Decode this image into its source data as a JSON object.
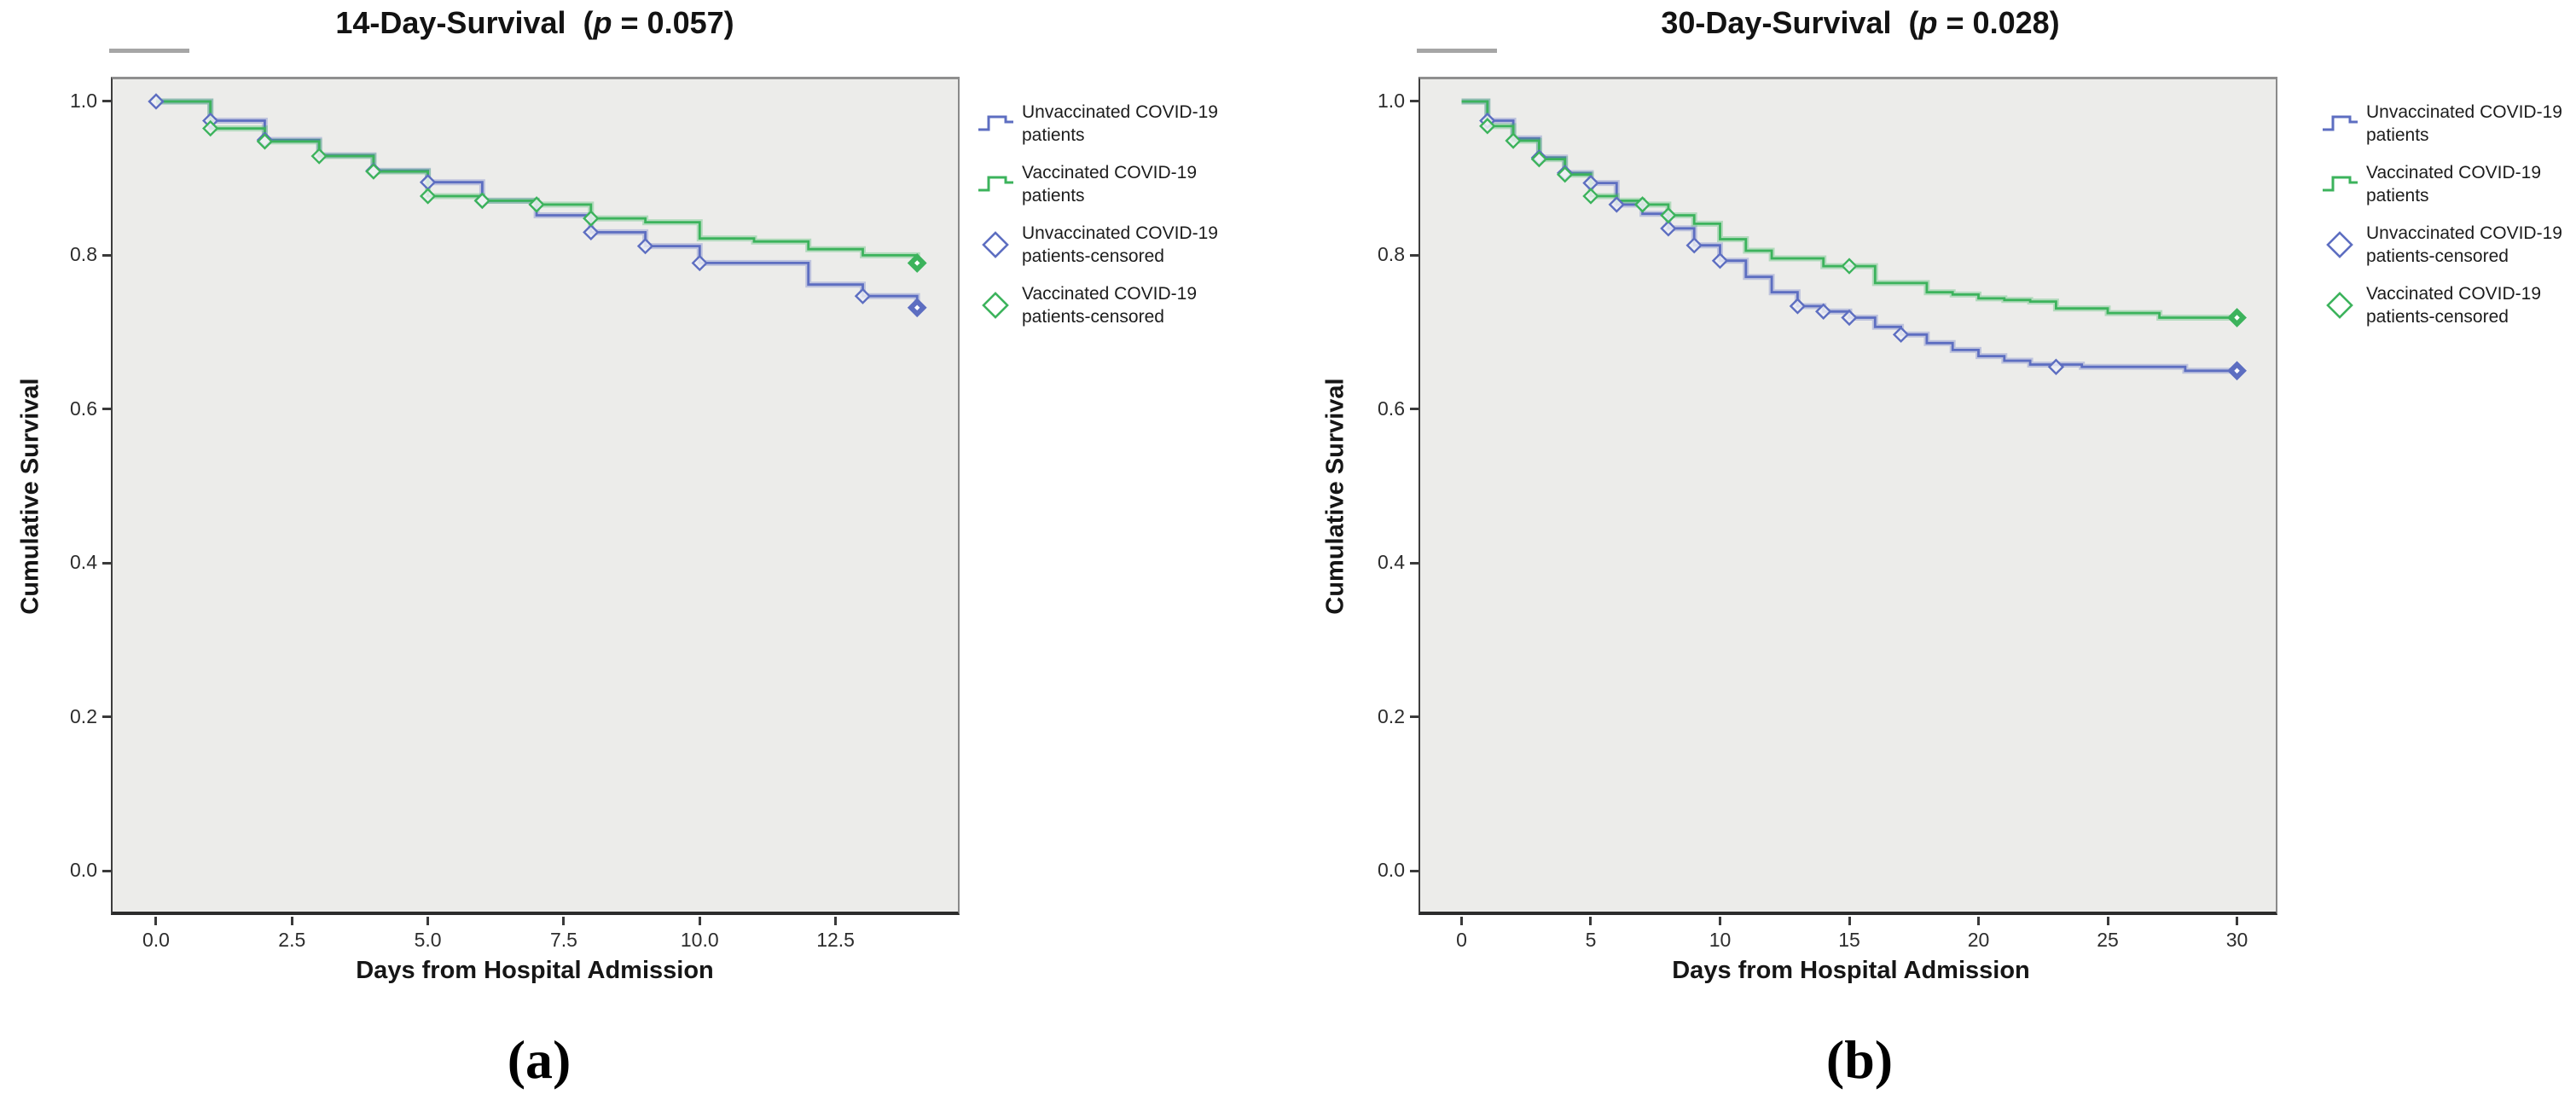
{
  "figure": {
    "colors": {
      "unvaccinated_blue": "#5d6ec1",
      "vaccinated_green": "#3cb35c",
      "plot_background": "#ececea",
      "page_background": "#ffffff"
    },
    "panels": [
      {
        "id": "a",
        "title_prefix": "14-Day-Survival  (",
        "title_p": "p",
        "title_suffix": " = 0.057)",
        "p_value": "0.057",
        "ylabel": "Cumulative Survival",
        "xlabel": "Days from Hospital Admission",
        "sublabel": "(a)"
      },
      {
        "id": "b",
        "title_prefix": "30-Day-Survival  (",
        "title_p": "p",
        "title_suffix": " = 0.028)",
        "p_value": "0.028",
        "ylabel": "Cumulative Survival",
        "xlabel": "Days from Hospital Admission",
        "sublabel": "(b)"
      }
    ],
    "legend": {
      "items": [
        {
          "type": "step-line",
          "color_key": "unvaccinated_blue",
          "line1": "Unvaccinated COVID-19",
          "line2": "patients"
        },
        {
          "type": "step-line",
          "color_key": "vaccinated_green",
          "line1": "Vaccinated COVID-19",
          "line2": "patients"
        },
        {
          "type": "diamond",
          "color_key": "unvaccinated_blue",
          "line1": "Unvaccinated COVID-19",
          "line2": "patients-censored"
        },
        {
          "type": "diamond",
          "color_key": "vaccinated_green",
          "line1": "Vaccinated COVID-19",
          "line2": "patients-censored"
        }
      ]
    }
  },
  "chart_data": [
    {
      "type": "line",
      "variant": "kaplan-meier-step",
      "title": "14-Day-Survival (p = 0.057)",
      "p_value": 0.057,
      "xlabel": "Days from Hospital Admission",
      "ylabel": "Cumulative Survival",
      "xlim": [
        -0.8,
        14.75
      ],
      "ylim": [
        -0.053,
        1.0288
      ],
      "grid": false,
      "legend_position": "right",
      "xticks": [
        {
          "v": 0,
          "label": "0.0"
        },
        {
          "v": 2.5,
          "label": "2.5"
        },
        {
          "v": 5,
          "label": "5.0"
        },
        {
          "v": 7.5,
          "label": "7.5"
        },
        {
          "v": 10,
          "label": "10.0"
        },
        {
          "v": 12.5,
          "label": "12.5"
        }
      ],
      "yticks": [
        {
          "v": 1.0,
          "label": "1.0"
        },
        {
          "v": 0.8,
          "label": "0.8"
        },
        {
          "v": 0.6,
          "label": "0.6"
        },
        {
          "v": 0.4,
          "label": "0.4"
        },
        {
          "v": 0.2,
          "label": "0.2"
        },
        {
          "v": 0.0,
          "label": "0.0"
        }
      ],
      "series": [
        {
          "name": "Unvaccinated COVID-19 patients",
          "color_key": "unvaccinated_blue",
          "steps": [
            [
              0,
              1.0
            ],
            [
              1,
              0.975
            ],
            [
              2,
              0.95
            ],
            [
              3,
              0.93
            ],
            [
              4,
              0.91
            ],
            [
              5,
              0.895
            ],
            [
              6,
              0.871
            ],
            [
              7,
              0.852
            ],
            [
              8,
              0.83
            ],
            [
              9,
              0.812
            ],
            [
              10,
              0.79
            ],
            [
              12,
              0.762
            ],
            [
              13,
              0.747
            ],
            [
              14,
              0.732
            ]
          ],
          "censored": [
            [
              0,
              1.0
            ],
            [
              1,
              0.975
            ],
            [
              2,
              0.95
            ],
            [
              4,
              0.91
            ],
            [
              5,
              0.895
            ],
            [
              6,
              0.871
            ],
            [
              8,
              0.83
            ],
            [
              9,
              0.812
            ],
            [
              10,
              0.79
            ],
            [
              13,
              0.747
            ]
          ],
          "end_censor": [
            14,
            0.732
          ]
        },
        {
          "name": "Vaccinated COVID-19 patients",
          "color_key": "vaccinated_green",
          "steps": [
            [
              0,
              1.0
            ],
            [
              1,
              0.965
            ],
            [
              2,
              0.948
            ],
            [
              3,
              0.929
            ],
            [
              4,
              0.909
            ],
            [
              5,
              0.877
            ],
            [
              6,
              0.871
            ],
            [
              7,
              0.866
            ],
            [
              8,
              0.848
            ],
            [
              9,
              0.843
            ],
            [
              10,
              0.822
            ],
            [
              11,
              0.818
            ],
            [
              12,
              0.808
            ],
            [
              13,
              0.8
            ],
            [
              14,
              0.79
            ]
          ],
          "censored": [
            [
              1,
              0.965
            ],
            [
              2,
              0.948
            ],
            [
              3,
              0.929
            ],
            [
              4,
              0.909
            ],
            [
              5,
              0.877
            ],
            [
              6,
              0.871
            ],
            [
              7,
              0.866
            ],
            [
              8,
              0.848
            ]
          ],
          "end_censor": [
            14,
            0.79
          ]
        }
      ]
    },
    {
      "type": "line",
      "variant": "kaplan-meier-step",
      "title": "30-Day-Survival (p = 0.028)",
      "p_value": 0.028,
      "xlabel": "Days from Hospital Admission",
      "ylabel": "Cumulative Survival",
      "xlim": [
        -1.6,
        31.5
      ],
      "ylim": [
        -0.053,
        1.0288
      ],
      "grid": false,
      "legend_position": "right",
      "xticks": [
        {
          "v": 0,
          "label": "0"
        },
        {
          "v": 5,
          "label": "5"
        },
        {
          "v": 10,
          "label": "10"
        },
        {
          "v": 15,
          "label": "15"
        },
        {
          "v": 20,
          "label": "20"
        },
        {
          "v": 25,
          "label": "25"
        },
        {
          "v": 30,
          "label": "30"
        }
      ],
      "yticks": [
        {
          "v": 1.0,
          "label": "1.0"
        },
        {
          "v": 0.8,
          "label": "0.8"
        },
        {
          "v": 0.6,
          "label": "0.6"
        },
        {
          "v": 0.4,
          "label": "0.4"
        },
        {
          "v": 0.2,
          "label": "0.2"
        },
        {
          "v": 0.0,
          "label": "0.0"
        }
      ],
      "series": [
        {
          "name": "Unvaccinated COVID-19 patients",
          "color_key": "unvaccinated_blue",
          "steps": [
            [
              0,
              1.0
            ],
            [
              1,
              0.975
            ],
            [
              2,
              0.952
            ],
            [
              3,
              0.927
            ],
            [
              4,
              0.907
            ],
            [
              5,
              0.894
            ],
            [
              6,
              0.866
            ],
            [
              7,
              0.854
            ],
            [
              8,
              0.835
            ],
            [
              9,
              0.813
            ],
            [
              10,
              0.793
            ],
            [
              11,
              0.772
            ],
            [
              12,
              0.752
            ],
            [
              13,
              0.734
            ],
            [
              14,
              0.727
            ],
            [
              15,
              0.719
            ],
            [
              16,
              0.707
            ],
            [
              17,
              0.697
            ],
            [
              18,
              0.686
            ],
            [
              19,
              0.677
            ],
            [
              20,
              0.669
            ],
            [
              21,
              0.663
            ],
            [
              22,
              0.658
            ],
            [
              24,
              0.655
            ],
            [
              28,
              0.65
            ],
            [
              30,
              0.65
            ]
          ],
          "censored": [
            [
              1,
              0.975
            ],
            [
              3,
              0.927
            ],
            [
              4,
              0.907
            ],
            [
              5,
              0.894
            ],
            [
              6,
              0.866
            ],
            [
              8,
              0.835
            ],
            [
              9,
              0.813
            ],
            [
              10,
              0.793
            ],
            [
              13,
              0.734
            ],
            [
              14,
              0.727
            ],
            [
              15,
              0.719
            ],
            [
              17,
              0.697
            ],
            [
              23,
              0.655
            ]
          ],
          "end_censor": [
            30,
            0.65
          ]
        },
        {
          "name": "Vaccinated COVID-19 patients",
          "color_key": "vaccinated_green",
          "steps": [
            [
              0,
              1.0
            ],
            [
              1,
              0.968
            ],
            [
              2,
              0.949
            ],
            [
              3,
              0.925
            ],
            [
              4,
              0.905
            ],
            [
              5,
              0.877
            ],
            [
              6,
              0.871
            ],
            [
              7,
              0.866
            ],
            [
              8,
              0.852
            ],
            [
              9,
              0.841
            ],
            [
              10,
              0.821
            ],
            [
              11,
              0.806
            ],
            [
              12,
              0.796
            ],
            [
              14,
              0.786
            ],
            [
              16,
              0.764
            ],
            [
              18,
              0.752
            ],
            [
              19,
              0.749
            ],
            [
              20,
              0.744
            ],
            [
              21,
              0.742
            ],
            [
              22,
              0.74
            ],
            [
              23,
              0.731
            ],
            [
              25,
              0.725
            ],
            [
              27,
              0.719
            ],
            [
              30,
              0.719
            ]
          ],
          "censored": [
            [
              1,
              0.968
            ],
            [
              2,
              0.949
            ],
            [
              3,
              0.925
            ],
            [
              4,
              0.905
            ],
            [
              5,
              0.877
            ],
            [
              7,
              0.866
            ],
            [
              8,
              0.852
            ],
            [
              15,
              0.786
            ]
          ],
          "end_censor": [
            30,
            0.719
          ]
        }
      ]
    }
  ]
}
